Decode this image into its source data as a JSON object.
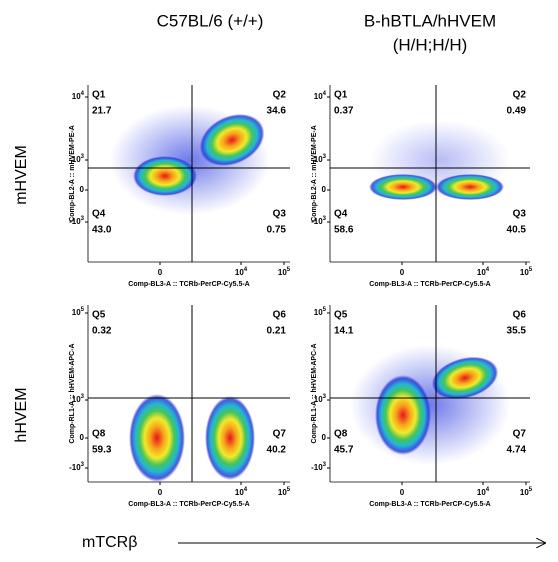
{
  "column_headers": [
    [
      "C57BL/6 (+/+)"
    ],
    [
      "B-hBTLA/hHVEM",
      "(H/H;H/H)"
    ]
  ],
  "row_labels": [
    "mHVEM",
    "hHVEM"
  ],
  "x_title": "mTCRβ",
  "x_ticks": [
    {
      "base": "0"
    },
    {
      "base": "10",
      "exp": "4"
    },
    {
      "base": "10",
      "exp": "5"
    }
  ],
  "y_ticks": [
    [
      {
        "base": "10",
        "exp": "4"
      },
      {
        "base": "10",
        "exp": "3"
      },
      {
        "base": "0"
      },
      {
        "base": "-10",
        "exp": "3"
      }
    ],
    [
      {
        "base": "10",
        "exp": "5"
      },
      {
        "base": "10",
        "exp": "3"
      },
      {
        "base": "0"
      },
      {
        "base": "-10",
        "exp": "3"
      }
    ]
  ],
  "panels": [
    {
      "y_axis_label": "Comp-BL2-A :: mHVEM-PE-A",
      "x_axis_label": "Comp-BL3-A :: TCRb-PerCP-Cy5.5-A",
      "quadrants": [
        {
          "name": "Q1",
          "percent": "21.7"
        },
        {
          "name": "Q2",
          "percent": "34.6"
        },
        {
          "name": "Q4",
          "percent": "43.0"
        },
        {
          "name": "Q3",
          "percent": "0.75"
        }
      ]
    },
    {
      "y_axis_label": "Comp-BL2-A :: mHVEM-PE-A",
      "x_axis_label": "Comp-BL3-A :: TCRb-PerCP-Cy5.5-A",
      "quadrants": [
        {
          "name": "Q1",
          "percent": "0.37"
        },
        {
          "name": "Q2",
          "percent": "0.49"
        },
        {
          "name": "Q4",
          "percent": "58.6"
        },
        {
          "name": "Q3",
          "percent": "40.5"
        }
      ]
    },
    {
      "y_axis_label": "Comp-RL1-A :: hHVEM-APC-A",
      "x_axis_label": "Comp-BL3-A :: TCRb-PerCP-Cy5.5-A",
      "quadrants": [
        {
          "name": "Q5",
          "percent": "0.32"
        },
        {
          "name": "Q6",
          "percent": "0.21"
        },
        {
          "name": "Q8",
          "percent": "59.3"
        },
        {
          "name": "Q7",
          "percent": "40.2"
        }
      ]
    },
    {
      "y_axis_label": "Comp-RL1-A :: hHVEM-APC-A",
      "x_axis_label": "Comp-BL3-A :: TCRb-PerCP-Cy5.5-A",
      "quadrants": [
        {
          "name": "Q5",
          "percent": "14.1"
        },
        {
          "name": "Q6",
          "percent": "35.5"
        },
        {
          "name": "Q8",
          "percent": "45.7"
        },
        {
          "name": "Q7",
          "percent": "4.74"
        }
      ]
    }
  ]
}
